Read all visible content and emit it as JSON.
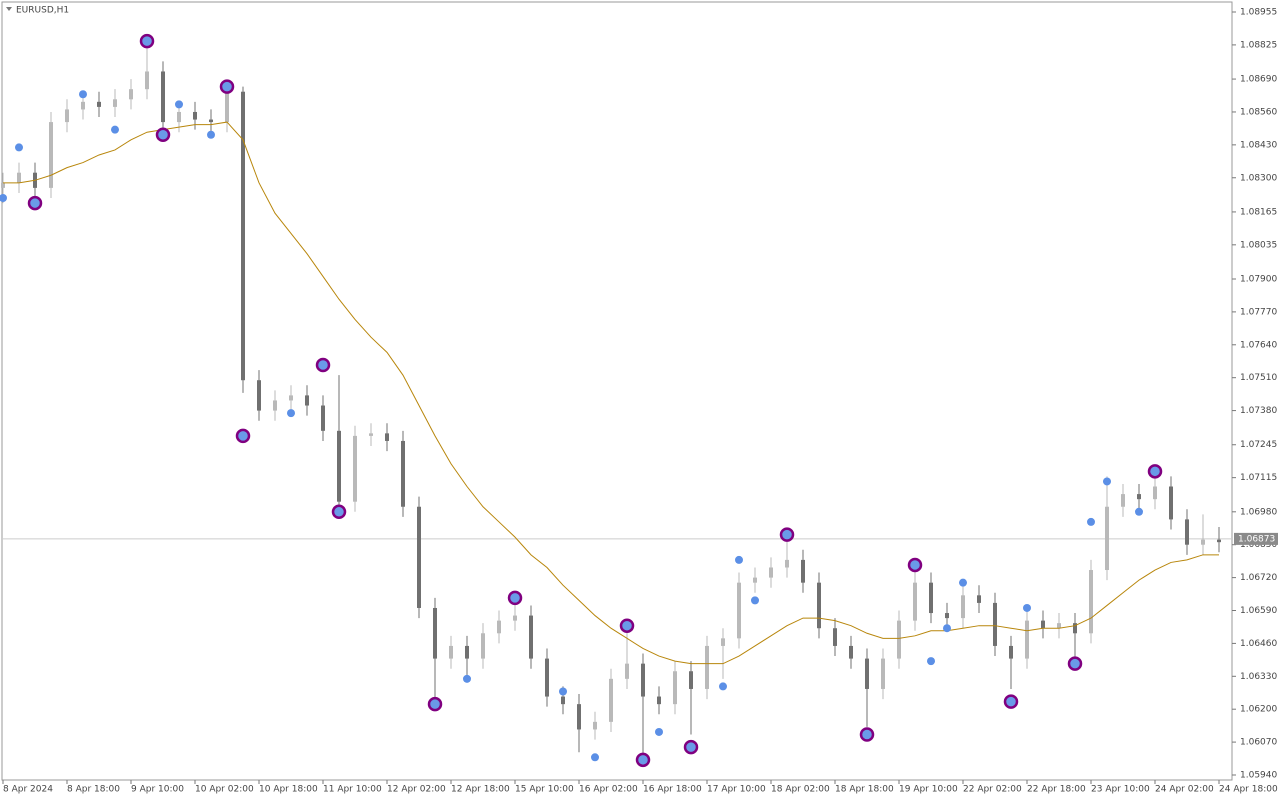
{
  "chart_data": {
    "type": "candlestick",
    "title": "EURUSD,H1",
    "categories": [
      "8 Apr 2024",
      null,
      null,
      null,
      "8 Apr 18:00",
      null,
      null,
      null,
      "9 Apr 10:00",
      null,
      null,
      null,
      "10 Apr 02:00",
      null,
      null,
      null,
      "10 Apr 18:00",
      null,
      null,
      null,
      "11 Apr 10:00",
      null,
      null,
      null,
      "12 Apr 02:00",
      null,
      null,
      null,
      "12 Apr 18:00",
      null,
      null,
      null,
      "15 Apr 10:00",
      null,
      null,
      null,
      "16 Apr 02:00",
      null,
      null,
      null,
      "16 Apr 18:00",
      null,
      null,
      null,
      "17 Apr 10:00",
      null,
      null,
      null,
      "18 Apr 02:00",
      null,
      null,
      null,
      "18 Apr 18:00",
      null,
      null,
      null,
      "19 Apr 10:00",
      null,
      null,
      null,
      "22 Apr 02:00",
      null,
      null,
      null,
      "22 Apr 18:00",
      null,
      null,
      null,
      "23 Apr 10:00",
      null,
      null,
      null,
      "24 Apr 02:00",
      null,
      null,
      null,
      "24 Apr 18:00"
    ],
    "open": [
      1.0826,
      1.0828,
      1.0832,
      1.0826,
      1.0852,
      1.0857,
      1.086,
      1.0858,
      1.0861,
      1.0865,
      1.0872,
      1.0852,
      1.0856,
      1.0853,
      1.0852,
      1.0864,
      1.075,
      1.0738,
      1.0742,
      1.0744,
      1.074,
      1.073,
      1.0702,
      1.0728,
      1.0729,
      1.0726,
      1.07,
      1.066,
      1.064,
      1.0645,
      1.064,
      1.065,
      1.0655,
      1.0657,
      1.064,
      1.0625,
      1.0622,
      1.0612,
      1.0615,
      1.0632,
      1.0638,
      1.0625,
      1.0622,
      1.0635,
      1.0628,
      1.0645,
      1.0648,
      1.067,
      1.0672,
      1.0676,
      1.0679,
      1.067,
      1.0652,
      1.0645,
      1.064,
      1.0628,
      1.064,
      1.0655,
      1.067,
      1.0658,
      1.0656,
      1.0665,
      1.0662,
      1.0645,
      1.064,
      1.0655,
      1.0652,
      1.0654,
      1.065,
      1.0675,
      1.07,
      1.0705,
      1.0703,
      1.0708,
      1.0695,
      1.0685,
      1.0687
    ],
    "high": [
      1.0832,
      1.0836,
      1.0836,
      1.0856,
      1.0861,
      1.0864,
      1.0864,
      1.0865,
      1.0869,
      1.0884,
      1.0876,
      1.086,
      1.086,
      1.0857,
      1.0868,
      1.0866,
      1.0754,
      1.0746,
      1.0748,
      1.0748,
      1.0744,
      1.0752,
      1.0732,
      1.0733,
      1.0733,
      1.073,
      1.0704,
      1.0664,
      1.0649,
      1.0649,
      1.0654,
      1.0659,
      1.0662,
      1.0661,
      1.0644,
      1.0629,
      1.0626,
      1.0619,
      1.0636,
      1.0652,
      1.0642,
      1.0629,
      1.0639,
      1.0639,
      1.0649,
      1.0652,
      1.0674,
      1.0676,
      1.068,
      1.0688,
      1.0683,
      1.0674,
      1.0656,
      1.0649,
      1.0644,
      1.0644,
      1.0659,
      1.0676,
      1.0674,
      1.0662,
      1.0669,
      1.0669,
      1.0666,
      1.0649,
      1.0659,
      1.0659,
      1.0658,
      1.0658,
      1.0679,
      1.0712,
      1.0709,
      1.0709,
      1.0714,
      1.0712,
      1.0699,
      1.0697,
      1.0692
    ],
    "low": [
      1.082,
      1.0824,
      1.082,
      1.0822,
      1.0848,
      1.0853,
      1.0854,
      1.0854,
      1.0857,
      1.0861,
      1.0848,
      1.0848,
      1.0849,
      1.0848,
      1.0848,
      1.0745,
      1.0734,
      1.0734,
      1.0738,
      1.0736,
      1.0726,
      1.0698,
      1.0698,
      1.0724,
      1.0722,
      1.0696,
      1.0656,
      1.0622,
      1.0636,
      1.0632,
      1.0636,
      1.0646,
      1.0651,
      1.0636,
      1.0621,
      1.0618,
      1.0603,
      1.0608,
      1.0611,
      1.0628,
      1.06,
      1.0618,
      1.0618,
      1.061,
      1.0624,
      1.0632,
      1.0644,
      1.0666,
      1.0668,
      1.0672,
      1.0666,
      1.0648,
      1.0641,
      1.0636,
      1.0613,
      1.0624,
      1.0636,
      1.0651,
      1.0654,
      1.0652,
      1.0652,
      1.0658,
      1.0641,
      1.0628,
      1.0636,
      1.0648,
      1.0648,
      1.064,
      1.0646,
      1.0671,
      1.0696,
      1.0699,
      1.0699,
      1.0691,
      1.0681,
      1.0681,
      1.0682
    ],
    "close": [
      1.0828,
      1.0832,
      1.0826,
      1.0852,
      1.0857,
      1.086,
      1.0858,
      1.0861,
      1.0865,
      1.0872,
      1.0852,
      1.0856,
      1.0853,
      1.0852,
      1.0864,
      1.075,
      1.0738,
      1.0742,
      1.0744,
      1.074,
      1.073,
      1.0702,
      1.0728,
      1.0729,
      1.0726,
      1.07,
      1.066,
      1.064,
      1.0645,
      1.064,
      1.065,
      1.0655,
      1.0657,
      1.064,
      1.0625,
      1.0622,
      1.0612,
      1.0615,
      1.0632,
      1.0638,
      1.0625,
      1.0622,
      1.0635,
      1.0628,
      1.0645,
      1.0648,
      1.067,
      1.0672,
      1.0676,
      1.0679,
      1.067,
      1.0652,
      1.0645,
      1.064,
      1.0628,
      1.064,
      1.0655,
      1.067,
      1.0658,
      1.0656,
      1.0665,
      1.0662,
      1.0645,
      1.064,
      1.0655,
      1.0652,
      1.0654,
      1.065,
      1.0675,
      1.07,
      1.0705,
      1.0703,
      1.0708,
      1.0695,
      1.0685,
      1.0687,
      1.0686
    ],
    "up_color": "#b9b9b9",
    "down_color": "#707070",
    "moving_average": {
      "color": "#b8860b",
      "values": [
        1.0828,
        1.0828,
        1.0829,
        1.0831,
        1.0834,
        1.0836,
        1.0839,
        1.0841,
        1.0845,
        1.0848,
        1.0849,
        1.085,
        1.0851,
        1.0851,
        1.0852,
        1.0845,
        1.0828,
        1.0816,
        1.0808,
        1.08,
        1.0791,
        1.0782,
        1.0774,
        1.0767,
        1.0761,
        1.0752,
        1.074,
        1.0728,
        1.0717,
        1.0708,
        1.07,
        1.0694,
        1.0688,
        1.0681,
        1.0676,
        1.0669,
        1.0663,
        1.0657,
        1.0652,
        1.0648,
        1.0644,
        1.0641,
        1.0639,
        1.0638,
        1.0638,
        1.0638,
        1.0641,
        1.0645,
        1.0649,
        1.0653,
        1.0656,
        1.0656,
        1.0655,
        1.0653,
        1.065,
        1.0648,
        1.0648,
        1.0649,
        1.0651,
        1.0651,
        1.0652,
        1.0653,
        1.0653,
        1.0652,
        1.0651,
        1.0652,
        1.0652,
        1.0653,
        1.0656,
        1.0661,
        1.0666,
        1.0671,
        1.0675,
        1.0678,
        1.0679,
        1.0681,
        1.0681
      ]
    },
    "major_signals": {
      "color": "#800080",
      "fill": "#6a9ae8",
      "values": [
        null,
        null,
        1.082,
        null,
        null,
        null,
        null,
        null,
        null,
        1.0884,
        1.0847,
        null,
        null,
        null,
        1.0866,
        1.0728,
        null,
        null,
        null,
        null,
        1.0756,
        1.0698,
        null,
        null,
        null,
        null,
        null,
        1.0622,
        null,
        null,
        null,
        null,
        1.0664,
        null,
        null,
        null,
        null,
        null,
        null,
        1.0653,
        1.06,
        null,
        null,
        1.0605,
        null,
        null,
        null,
        null,
        null,
        1.0689,
        null,
        null,
        null,
        null,
        1.061,
        null,
        null,
        1.0677,
        null,
        null,
        null,
        null,
        null,
        1.0623,
        null,
        null,
        null,
        1.0638,
        null,
        null,
        null,
        null,
        1.0714,
        null,
        null,
        null,
        null
      ]
    },
    "minor_signals": {
      "color": "#5b8fe6",
      "values": [
        1.0822,
        1.0842,
        null,
        null,
        null,
        1.0863,
        null,
        1.0849,
        null,
        null,
        null,
        1.0859,
        null,
        1.0847,
        null,
        null,
        null,
        null,
        1.0737,
        null,
        null,
        null,
        null,
        null,
        null,
        null,
        null,
        null,
        null,
        1.0632,
        null,
        null,
        null,
        null,
        null,
        1.0627,
        null,
        1.0601,
        null,
        null,
        null,
        1.0611,
        null,
        null,
        null,
        1.0629,
        1.0679,
        1.0663,
        null,
        null,
        null,
        null,
        null,
        null,
        null,
        null,
        null,
        null,
        1.0639,
        1.0652,
        1.067,
        null,
        null,
        null,
        1.066,
        null,
        null,
        null,
        1.0694,
        1.071,
        null,
        1.0698,
        null,
        null,
        null,
        null,
        null
      ]
    },
    "current_price": 1.06873,
    "ylim": [
      1.0594,
      1.08955
    ],
    "yticks": [
      {
        "value": 1.0594,
        "label": "1.05940"
      },
      {
        "value": 1.0607,
        "label": "1.06070"
      },
      {
        "value": 1.062,
        "label": "1.06200"
      },
      {
        "value": 1.0633,
        "label": "1.06330"
      },
      {
        "value": 1.0646,
        "label": "1.06460"
      },
      {
        "value": 1.0659,
        "label": "1.06590"
      },
      {
        "value": 1.0672,
        "label": "1.06720"
      },
      {
        "value": 1.0685,
        "label": "1.06850"
      },
      {
        "value": 1.0698,
        "label": "1.06980"
      },
      1.07115,
      1.07245,
      {
        "value": 1.0738,
        "label": "1.07380"
      },
      {
        "value": 1.0751,
        "label": "1.07510"
      },
      {
        "value": 1.0764,
        "label": "1.07640"
      },
      {
        "value": 1.0777,
        "label": "1.07770"
      },
      {
        "value": 1.079,
        "label": "1.07900"
      },
      1.08035,
      1.08165,
      {
        "value": 1.083,
        "label": "1.08300"
      },
      {
        "value": 1.0843,
        "label": "1.08430"
      },
      {
        "value": 1.0856,
        "label": "1.08560"
      },
      {
        "value": 1.0869,
        "label": "1.08690"
      },
      1.08825,
      1.08955
    ]
  }
}
